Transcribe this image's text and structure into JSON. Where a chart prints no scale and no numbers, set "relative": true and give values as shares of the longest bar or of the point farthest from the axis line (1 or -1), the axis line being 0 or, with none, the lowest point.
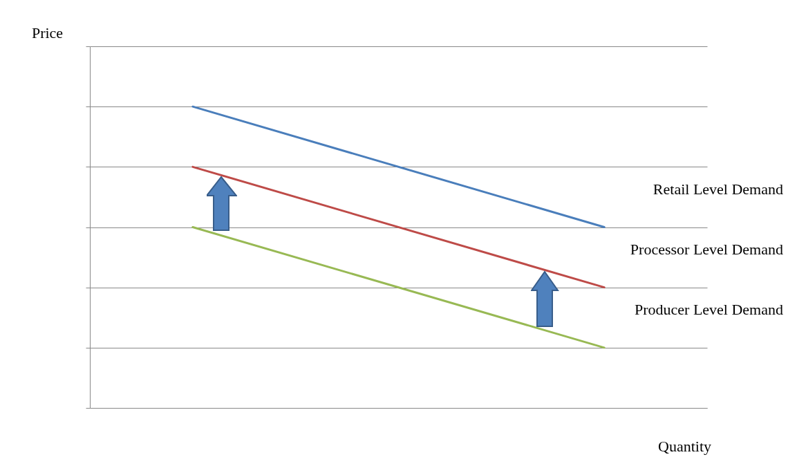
{
  "chart_data": {
    "type": "line",
    "relative": true,
    "xlabel": "Quantity",
    "ylabel": "Price",
    "categories": [
      null,
      null
    ],
    "grid": "y",
    "series": [
      {
        "name": "Retail Level Demand",
        "color": "#4a7ebb",
        "values": [
          1,
          0.6
        ]
      },
      {
        "name": "Processor Level Demand",
        "color": "#be4b48",
        "values": [
          0.8,
          0.4
        ]
      },
      {
        "name": "Producer Level Demand",
        "color": "#98b954",
        "values": [
          0.6,
          0.2
        ]
      }
    ]
  }
}
